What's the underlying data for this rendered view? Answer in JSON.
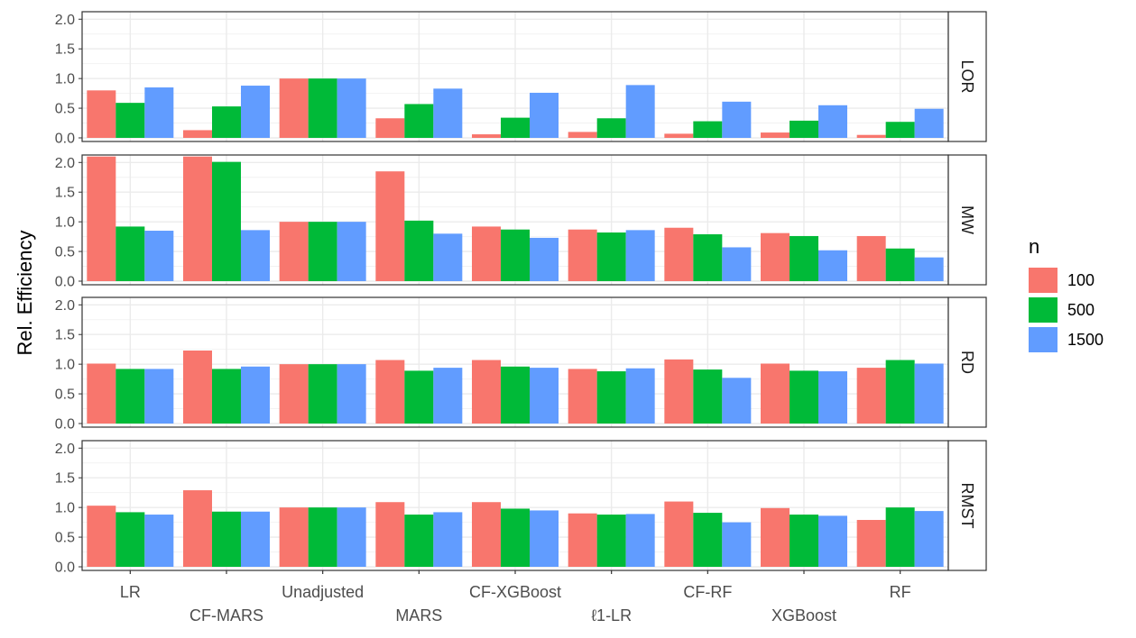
{
  "chart_data": {
    "type": "bar",
    "ylabel": "Rel. Efficiency",
    "ylim": [
      0,
      2.05
    ],
    "yticks": [
      "0.0",
      "0.5",
      "1.0",
      "1.5",
      "2.0"
    ],
    "grid": true,
    "legend": {
      "title": "n",
      "placement": "right",
      "entries": [
        "100",
        "500",
        "1500"
      ],
      "colors": [
        "#F8766D",
        "#00BA38",
        "#619CFF"
      ]
    },
    "categories": [
      "LR",
      "CF-MARS",
      "Unadjusted",
      "MARS",
      "CF-XGBoost",
      "ℓ1-LR",
      "CF-RF",
      "XGBoost",
      "RF"
    ],
    "facets": [
      {
        "label": "LOR",
        "series": [
          {
            "name": "100",
            "values": [
              0.8,
              0.13,
              1.0,
              0.33,
              0.06,
              0.1,
              0.07,
              0.09,
              0.05
            ]
          },
          {
            "name": "500",
            "values": [
              0.59,
              0.53,
              1.0,
              0.57,
              0.34,
              0.33,
              0.28,
              0.29,
              0.27
            ]
          },
          {
            "name": "1500",
            "values": [
              0.85,
              0.88,
              1.0,
              0.83,
              0.76,
              0.89,
              0.61,
              0.55,
              0.49
            ]
          }
        ]
      },
      {
        "label": "MW",
        "series": [
          {
            "name": "100",
            "values": [
              2.1,
              2.1,
              1.0,
              1.85,
              0.92,
              0.87,
              0.9,
              0.81,
              0.76
            ]
          },
          {
            "name": "500",
            "values": [
              0.92,
              2.01,
              1.0,
              1.02,
              0.87,
              0.82,
              0.79,
              0.76,
              0.55
            ]
          },
          {
            "name": "1500",
            "values": [
              0.85,
              0.86,
              1.0,
              0.8,
              0.73,
              0.86,
              0.57,
              0.52,
              0.4
            ]
          }
        ]
      },
      {
        "label": "RD",
        "series": [
          {
            "name": "100",
            "values": [
              1.01,
              1.23,
              1.0,
              1.07,
              1.07,
              0.92,
              1.08,
              1.01,
              0.94
            ]
          },
          {
            "name": "500",
            "values": [
              0.92,
              0.92,
              1.0,
              0.89,
              0.96,
              0.88,
              0.91,
              0.89,
              1.07
            ]
          },
          {
            "name": "1500",
            "values": [
              0.92,
              0.96,
              1.0,
              0.94,
              0.94,
              0.93,
              0.77,
              0.88,
              1.01
            ]
          }
        ]
      },
      {
        "label": "RMST",
        "series": [
          {
            "name": "100",
            "values": [
              1.03,
              1.29,
              1.0,
              1.09,
              1.09,
              0.9,
              1.1,
              0.99,
              0.79
            ]
          },
          {
            "name": "500",
            "values": [
              0.92,
              0.93,
              1.0,
              0.88,
              0.98,
              0.88,
              0.91,
              0.88,
              1.0
            ]
          },
          {
            "name": "1500",
            "values": [
              0.88,
              0.93,
              1.0,
              0.92,
              0.95,
              0.89,
              0.75,
              0.86,
              0.94
            ]
          }
        ]
      }
    ]
  }
}
